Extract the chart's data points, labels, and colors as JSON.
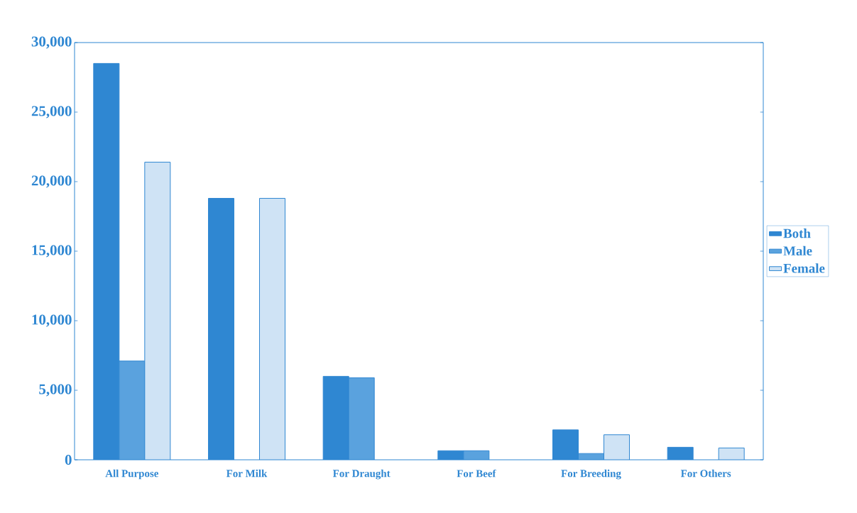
{
  "chart_data": {
    "type": "bar",
    "categories": [
      "All Purpose",
      "For Milk",
      "For Draught",
      "For Beef",
      "For Breeding",
      "For Others"
    ],
    "series": [
      {
        "name": "Both",
        "color": "#2f87d2",
        "values": [
          28500,
          18800,
          6000,
          650,
          2150,
          900
        ]
      },
      {
        "name": "Male",
        "color": "#5aa2de",
        "values": [
          7100,
          null,
          5900,
          650,
          450,
          null
        ]
      },
      {
        "name": "Female",
        "color": "#cfe3f5",
        "values": [
          21400,
          18800,
          null,
          null,
          1800,
          850
        ]
      }
    ],
    "ylim": [
      0,
      30000
    ],
    "yticks": [
      {
        "value": 0,
        "label": "0"
      },
      {
        "value": 5000,
        "label": "5,000"
      },
      {
        "value": 10000,
        "label": "10,000"
      },
      {
        "value": 15000,
        "label": "15,000"
      },
      {
        "value": 20000,
        "label": "20,000"
      },
      {
        "value": 25000,
        "label": "25,000"
      },
      {
        "value": 30000,
        "label": "30,000"
      }
    ],
    "legend": "right"
  }
}
